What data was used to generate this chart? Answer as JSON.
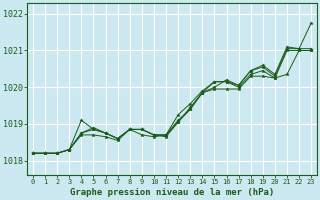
{
  "title": "Graphe pression niveau de la mer (hPa)",
  "bg_color": "#cce8f0",
  "grid_color": "#ffffff",
  "line_color": "#1a5c1a",
  "xlim": [
    -0.5,
    23.5
  ],
  "ylim": [
    1017.6,
    1022.3
  ],
  "yticks": [
    1018,
    1019,
    1020,
    1021,
    1022
  ],
  "xticks": [
    0,
    1,
    2,
    3,
    4,
    5,
    6,
    7,
    8,
    9,
    10,
    11,
    12,
    13,
    14,
    15,
    16,
    17,
    18,
    19,
    20,
    21,
    22,
    23
  ],
  "series": [
    [
      1018.2,
      1018.2,
      1018.2,
      1018.3,
      1018.75,
      1018.9,
      1018.75,
      1018.6,
      1018.85,
      1018.85,
      1018.7,
      1018.7,
      1019.25,
      1019.55,
      1019.9,
      1020.15,
      1020.15,
      1020.05,
      1020.45,
      1020.55,
      1020.3,
      1021.05,
      1021.05,
      1021.75
    ],
    [
      1018.2,
      1018.2,
      1018.2,
      1018.3,
      1018.75,
      1018.85,
      1018.75,
      1018.6,
      1018.85,
      1018.85,
      1018.7,
      1018.7,
      1019.1,
      1019.4,
      1019.85,
      1020.15,
      1020.15,
      1020.0,
      1020.35,
      1020.45,
      1020.25,
      1021.0,
      1021.0,
      1021.0
    ],
    [
      1018.2,
      1018.2,
      1018.2,
      1018.3,
      1019.1,
      1018.85,
      1018.75,
      1018.6,
      1018.85,
      1018.7,
      1018.65,
      1018.7,
      1019.05,
      1019.4,
      1019.85,
      1020.0,
      1020.2,
      1020.05,
      1020.45,
      1020.6,
      1020.35,
      1021.1,
      1021.05,
      1021.05
    ],
    [
      1018.2,
      1018.2,
      1018.2,
      1018.3,
      1018.7,
      1018.7,
      1018.65,
      1018.55,
      1018.85,
      1018.85,
      1018.7,
      1018.65,
      1019.05,
      1019.45,
      1019.85,
      1019.95,
      1019.95,
      1019.95,
      1020.3,
      1020.3,
      1020.25,
      1020.35,
      1021.0,
      1021.0
    ]
  ]
}
